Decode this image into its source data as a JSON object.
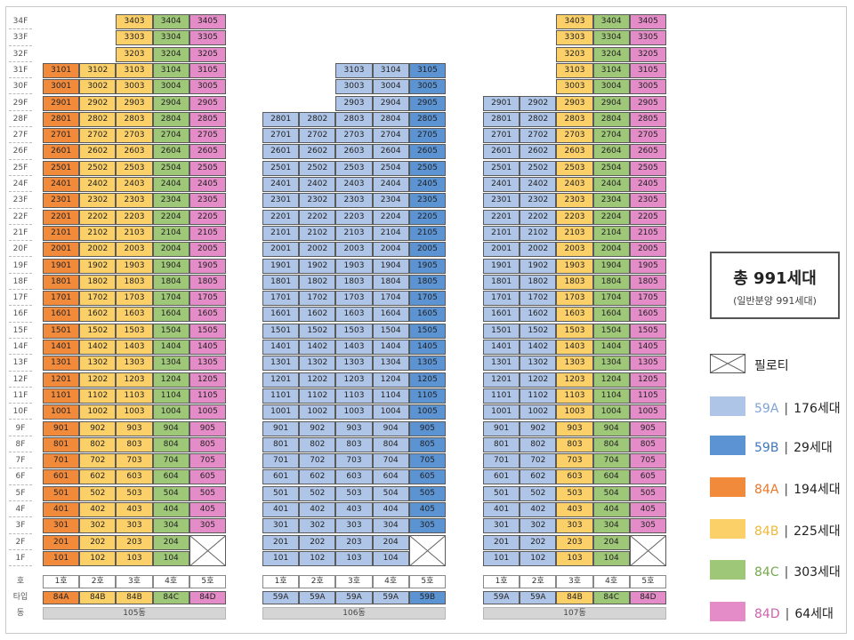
{
  "floors": [
    "1F",
    "2F",
    "3F",
    "4F",
    "5F",
    "6F",
    "7F",
    "8F",
    "9F",
    "10F",
    "11F",
    "12F",
    "13F",
    "14F",
    "15F",
    "16F",
    "17F",
    "18F",
    "19F",
    "20F",
    "21F",
    "22F",
    "23F",
    "24F",
    "25F",
    "26F",
    "27F",
    "28F",
    "29F",
    "30F",
    "31F",
    "32F",
    "33F",
    "34F"
  ],
  "row_labels": {
    "unit": "호",
    "type": "타입",
    "building": "동"
  },
  "colors": {
    "59A": "#aec5e8",
    "59B": "#5b93d3",
    "84A": "#f28a3b",
    "84B": "#fcd068",
    "84C": "#9fc778",
    "84D": "#e48cc7"
  },
  "buildings": [
    {
      "name": "105동",
      "units": [
        "1호",
        "2호",
        "3호",
        "4호",
        "5호"
      ],
      "types": [
        "84A",
        "84B",
        "84B",
        "84C",
        "84D"
      ],
      "min_floor": [
        1,
        1,
        1,
        1,
        3
      ],
      "max_floor": [
        31,
        31,
        34,
        34,
        34
      ],
      "pilotis": [
        false,
        false,
        false,
        false,
        true
      ]
    },
    {
      "name": "106동",
      "units": [
        "1호",
        "2호",
        "3호",
        "4호",
        "5호"
      ],
      "types": [
        "59A",
        "59A",
        "59A",
        "59A",
        "59B"
      ],
      "min_floor": [
        1,
        1,
        1,
        1,
        3
      ],
      "max_floor": [
        28,
        28,
        31,
        31,
        31
      ],
      "pilotis": [
        false,
        false,
        false,
        false,
        true
      ]
    },
    {
      "name": "107동",
      "units": [
        "1호",
        "2호",
        "3호",
        "4호",
        "5호"
      ],
      "types": [
        "59A",
        "59A",
        "84B",
        "84C",
        "84D"
      ],
      "min_floor": [
        1,
        1,
        1,
        1,
        3
      ],
      "max_floor": [
        29,
        29,
        34,
        34,
        34
      ],
      "pilotis": [
        false,
        false,
        false,
        false,
        true
      ]
    }
  ],
  "summary": {
    "total": "총 991세대",
    "sub": "(일반분양 991세대)"
  },
  "legend": [
    {
      "key": "pilotis",
      "label": "필로티",
      "count": ""
    },
    {
      "key": "59A",
      "label": "59A",
      "count": "176세대",
      "color": "#aec5e8",
      "text_color": "#7fa3d6"
    },
    {
      "key": "59B",
      "label": "59B",
      "count": "29세대",
      "color": "#5b93d3",
      "text_color": "#3f77be"
    },
    {
      "key": "84A",
      "label": "84A",
      "count": "194세대",
      "color": "#f28a3b",
      "text_color": "#e8782a"
    },
    {
      "key": "84B",
      "label": "84B",
      "count": "225세대",
      "color": "#fcd068",
      "text_color": "#f0b838"
    },
    {
      "key": "84C",
      "label": "84C",
      "count": "303세대",
      "color": "#9fc778",
      "text_color": "#76a84f"
    },
    {
      "key": "84D",
      "label": "84D",
      "count": "64세대",
      "color": "#e48cc7",
      "text_color": "#cf62ad"
    }
  ]
}
